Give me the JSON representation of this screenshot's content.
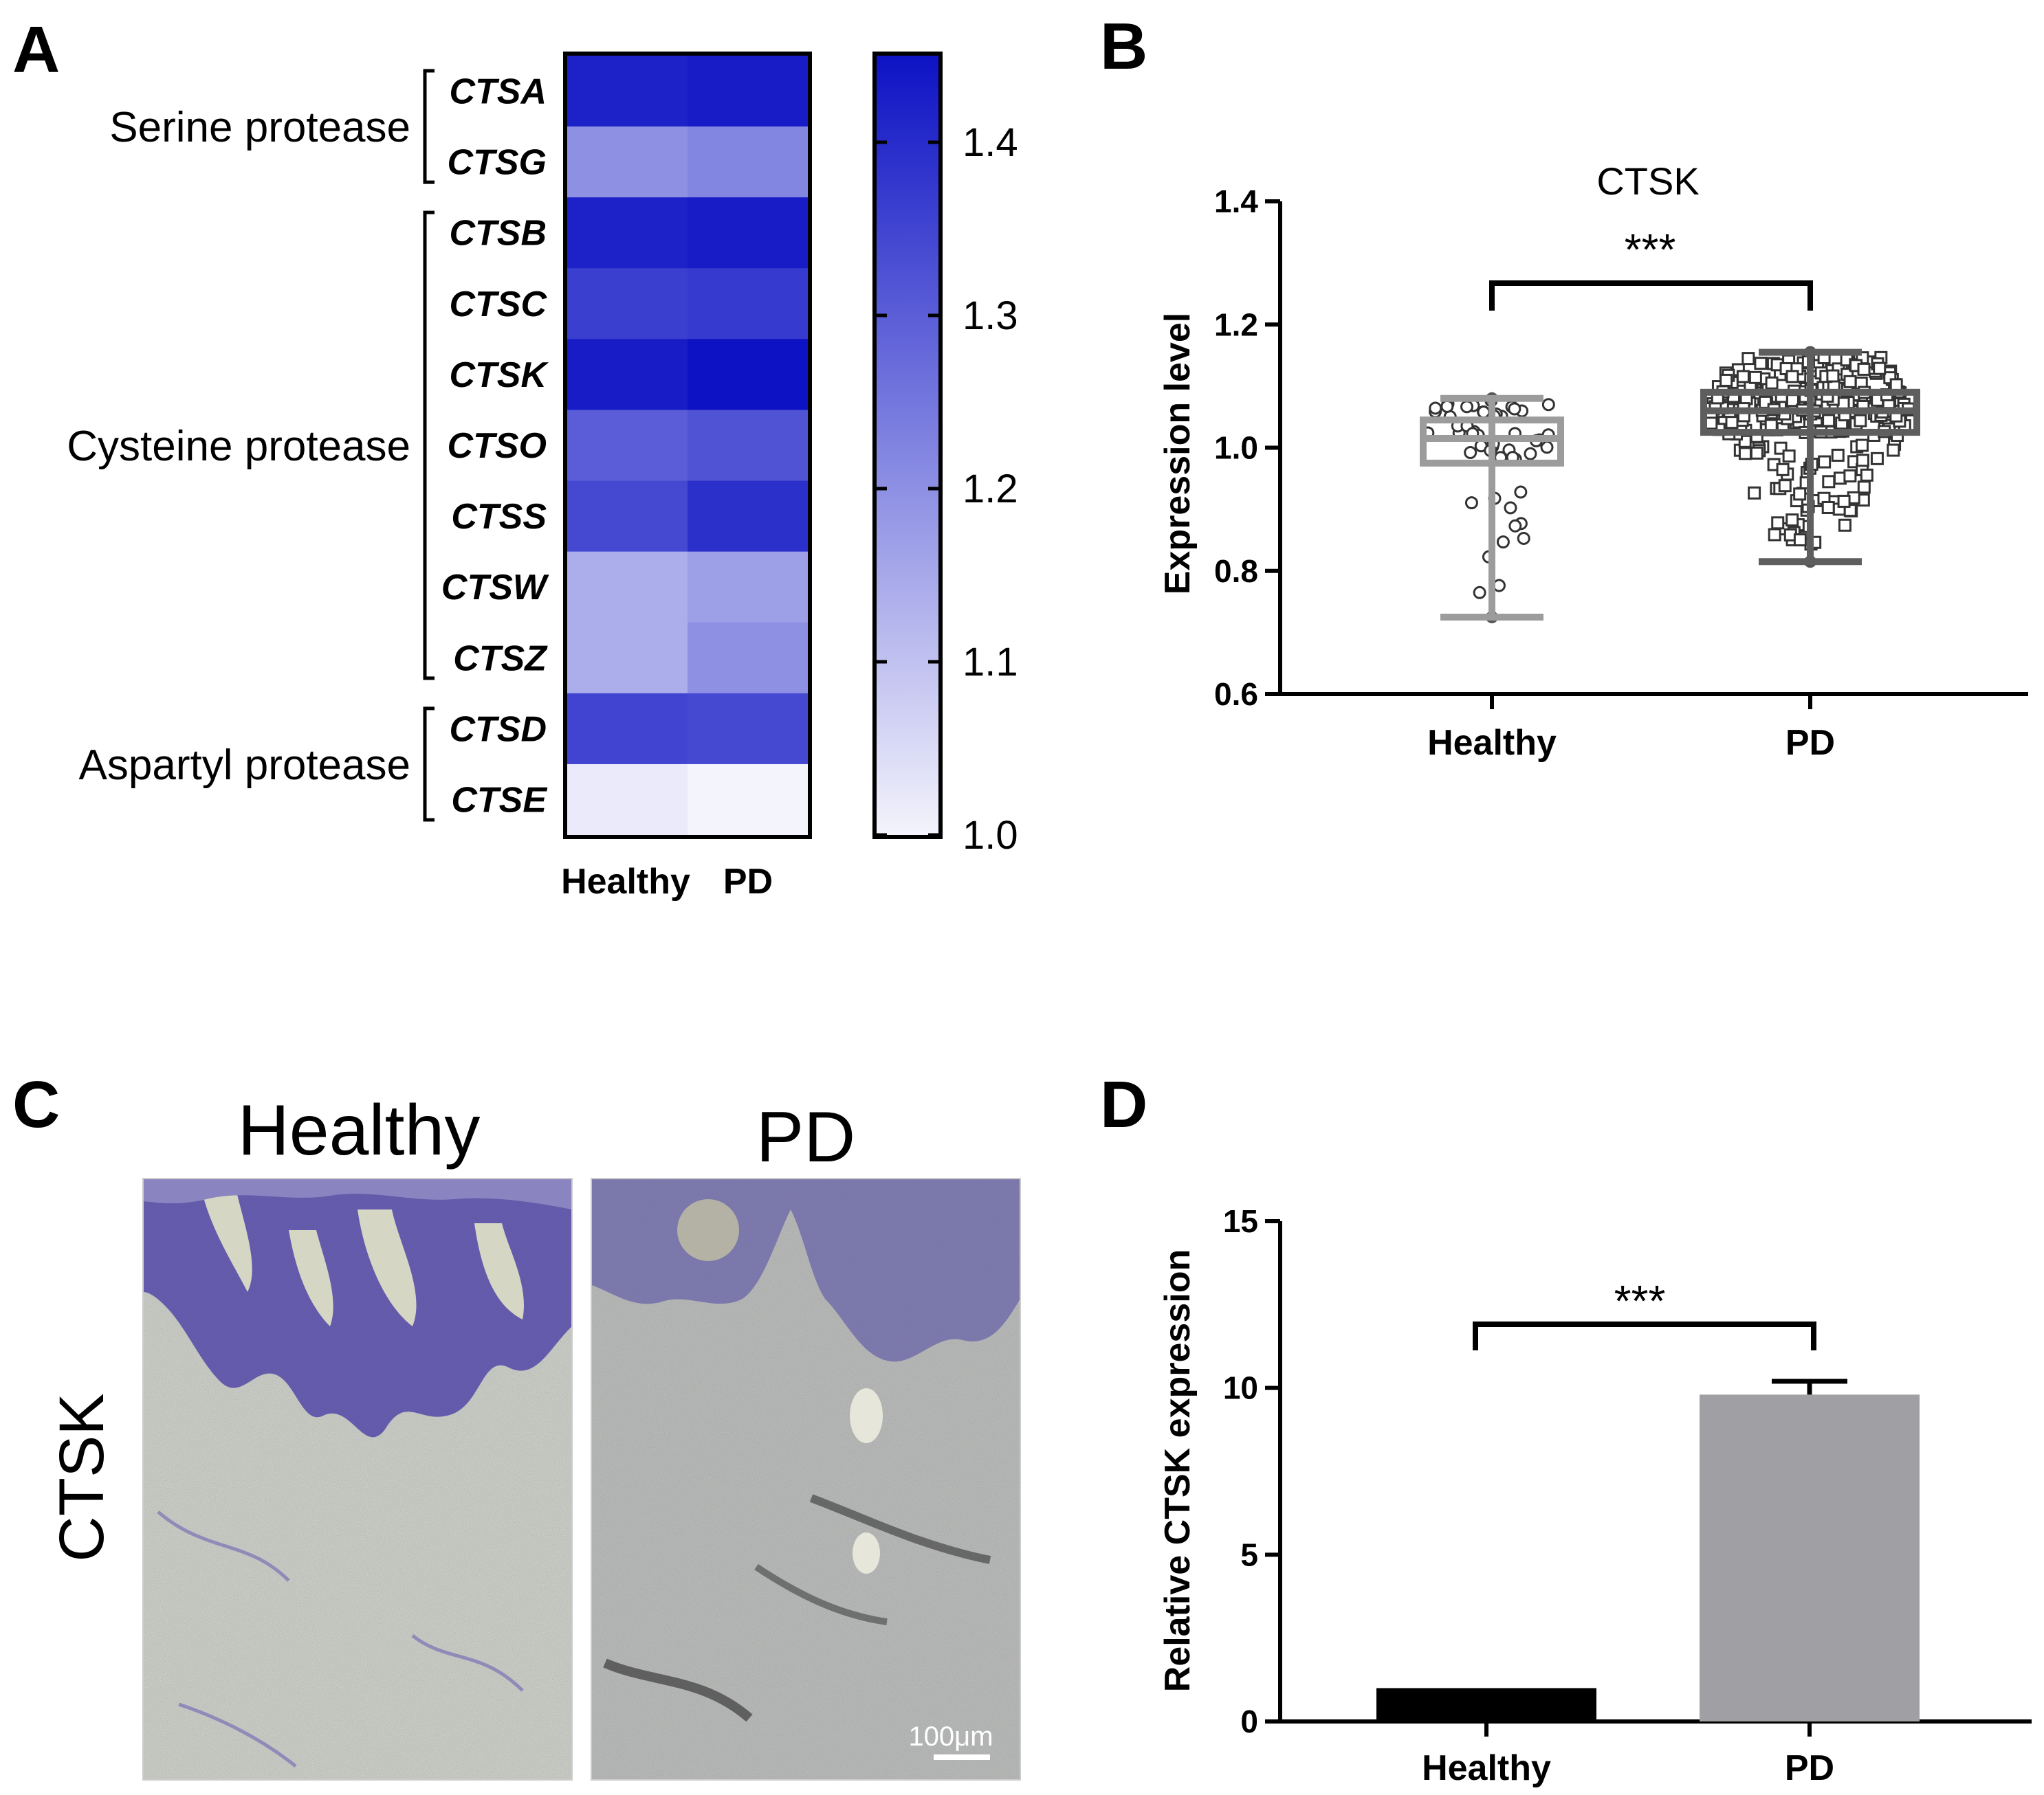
{
  "panels": {
    "a_letter": "A",
    "b_letter": "B",
    "c_letter": "C",
    "d_letter": "D"
  },
  "colors": {
    "heat_low": "#f4f4fc",
    "heat_high": "#0d12c4",
    "box_healthy": "#9c9c9c",
    "box_pd": "#5e5e5e",
    "bar_healthy": "#000000",
    "bar_pd": "#a0a0a4"
  },
  "chart_data": [
    {
      "id": "A",
      "type": "heatmap",
      "columns": [
        "Healthy",
        "PD"
      ],
      "rows": [
        "CTSA",
        "CTSG",
        "CTSB",
        "CTSC",
        "CTSK",
        "CTSO",
        "CTSS",
        "CTSW",
        "CTSZ",
        "CTSD",
        "CTSE"
      ],
      "groups": [
        {
          "label": "Serine protease",
          "rows": [
            "CTSA",
            "CTSG"
          ]
        },
        {
          "label": "Cysteine protease",
          "rows": [
            "CTSB",
            "CTSC",
            "CTSK",
            "CTSO",
            "CTSS",
            "CTSW",
            "CTSZ"
          ]
        },
        {
          "label": "Aspartyl protease",
          "rows": [
            "CTSD",
            "CTSE"
          ]
        }
      ],
      "values": [
        [
          1.42,
          1.43
        ],
        [
          1.2,
          1.22
        ],
        [
          1.42,
          1.43
        ],
        [
          1.36,
          1.37
        ],
        [
          1.43,
          1.45
        ],
        [
          1.3,
          1.32
        ],
        [
          1.34,
          1.39
        ],
        [
          1.14,
          1.17
        ],
        [
          1.14,
          1.2
        ],
        [
          1.35,
          1.34
        ],
        [
          1.02,
          1.0
        ]
      ],
      "colorbar": {
        "min": 1.0,
        "max": 1.45,
        "ticks": [
          "1.0",
          "1.1",
          "1.2",
          "1.3",
          "1.4"
        ]
      }
    },
    {
      "id": "B",
      "type": "box",
      "title": "CTSK",
      "ylabel": "Expression level",
      "categories": [
        "Healthy",
        "PD"
      ],
      "ylim": [
        0.6,
        1.4
      ],
      "yticks": [
        "0.6",
        "0.8",
        "1.0",
        "1.2",
        "1.4"
      ],
      "boxes": [
        {
          "name": "Healthy",
          "min": 0.725,
          "q1": 0.975,
          "median": 1.015,
          "q3": 1.045,
          "max": 1.08,
          "n_points": 50
        },
        {
          "name": "PD",
          "min": 0.815,
          "q1": 1.025,
          "median": 1.06,
          "q3": 1.09,
          "max": 1.155,
          "n_points": 300
        }
      ],
      "significance": "***"
    },
    {
      "id": "D",
      "type": "bar",
      "ylabel": "Relative CTSK expression",
      "categories": [
        "Healthy",
        "PD"
      ],
      "values": [
        1.0,
        9.8
      ],
      "errors": [
        0.05,
        0.4
      ],
      "ylim": [
        0,
        15
      ],
      "yticks": [
        "0",
        "5",
        "10",
        "15"
      ],
      "significance": "***"
    }
  ],
  "micrographs": {
    "title_healthy": "Healthy",
    "title_pd": "PD",
    "stain_label": "CTSK",
    "scale_bar": "100μm"
  }
}
